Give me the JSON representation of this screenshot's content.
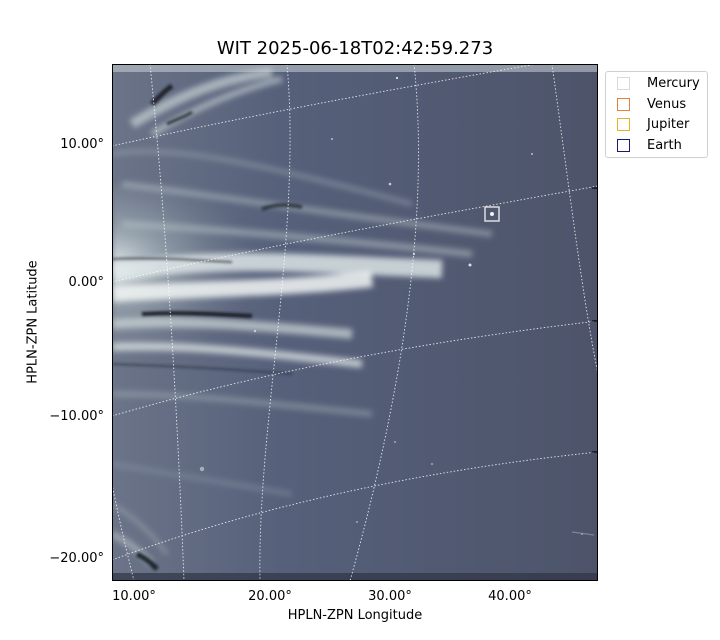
{
  "title": "WIT 2025-06-18T02:42:59.273",
  "axes": {
    "xlabel": "HPLN-ZPN Longitude",
    "ylabel": "HPLN-ZPN Latitude",
    "xticks": [
      "10.00°",
      "20.00°",
      "30.00°",
      "40.00°"
    ],
    "yticks": [
      "10.00°",
      "0.00°",
      "−10.00°",
      "−20.00°"
    ]
  },
  "legend": [
    {
      "label": "Mercury",
      "color": "#d9d9d9"
    },
    {
      "label": "Venus",
      "color": "#e0813f"
    },
    {
      "label": "Jupiter",
      "color": "#e9b02a"
    },
    {
      "label": "Earth",
      "color": "#1c1a6e"
    }
  ],
  "image": {
    "colormap": "bone",
    "background": "#525a70"
  }
}
